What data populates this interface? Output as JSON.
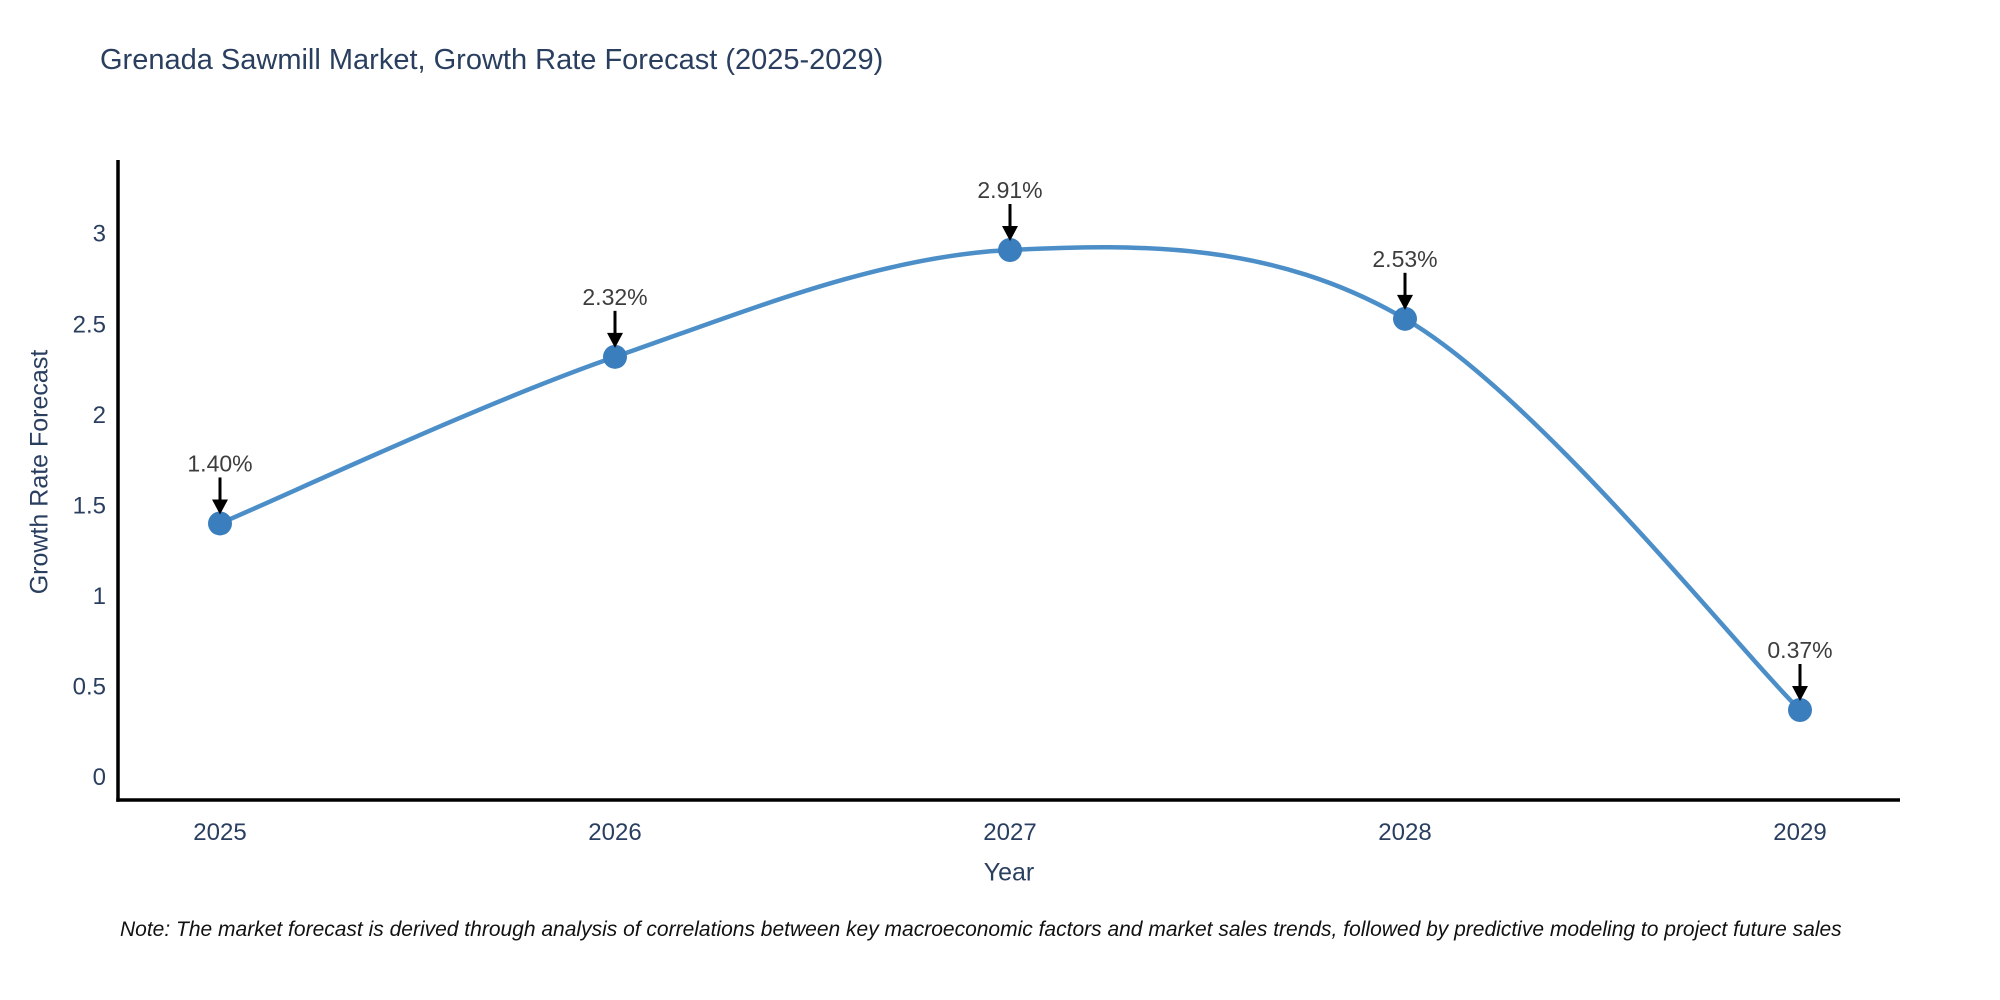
{
  "title": "Grenada Sawmill Market, Growth Rate Forecast (2025-2029)",
  "note": "Note: The market forecast is derived through analysis of correlations between key macroeconomic factors and market sales trends, followed by predictive modeling to project future sales",
  "chart_data": {
    "type": "line",
    "line_shape": "spline",
    "title": "Grenada Sawmill Market, Growth Rate Forecast (2025-2029)",
    "xlabel": "Year",
    "ylabel": "Growth Rate Forecast",
    "categories": [
      "2025",
      "2026",
      "2027",
      "2028",
      "2029"
    ],
    "series": [
      {
        "name": "Growth Rate Forecast",
        "values": [
          1.4,
          2.32,
          2.91,
          2.53,
          0.37
        ]
      }
    ],
    "point_labels": [
      "1.40%",
      "2.32%",
      "2.91%",
      "2.53%",
      "0.37%"
    ],
    "yticks": [
      0,
      0.5,
      1,
      1.5,
      2,
      2.5,
      3
    ],
    "ylim": [
      -0.13,
      3.41
    ],
    "grid": false,
    "legend": "none",
    "colors": {
      "line": "#4c8fc8",
      "marker": "#3a7ebd",
      "axis": "#000000",
      "tick_text": "#2a3f5f",
      "annotation_text": "#3d3d3d",
      "arrow": "#000000"
    }
  }
}
